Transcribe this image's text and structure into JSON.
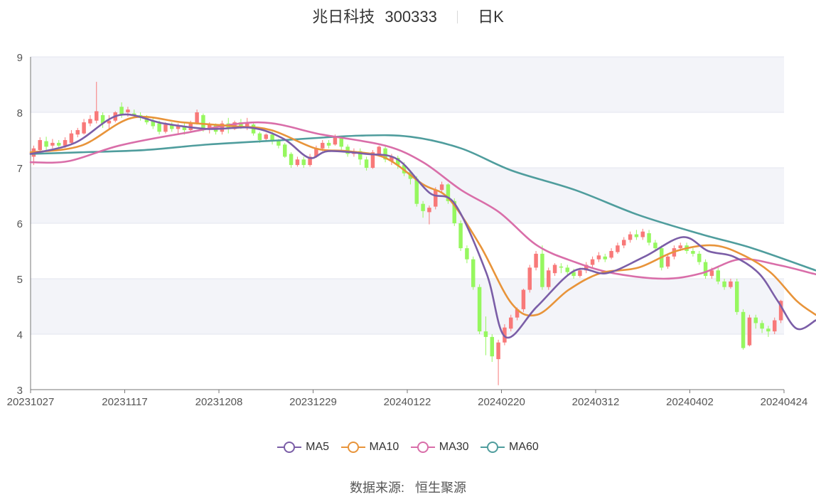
{
  "header": {
    "name": "兆日科技",
    "code": "300333",
    "period": "日K"
  },
  "source": {
    "label": "数据来源:",
    "value": "恒生聚源"
  },
  "colors": {
    "up": "#f87979",
    "down": "#96f75f",
    "ma5": "#7b5ea7",
    "ma10": "#e8943a",
    "ma30": "#d96ea9",
    "ma60": "#4f9d9d"
  },
  "chart_data": {
    "type": "candlestick",
    "ylim": [
      3,
      9
    ],
    "yticks": [
      "3",
      "4",
      "5",
      "6",
      "7",
      "8",
      "9"
    ],
    "xticks": [
      "20231027",
      "20231117",
      "20231208",
      "20231229",
      "20240122",
      "20240220",
      "20240312",
      "20240402",
      "20240424"
    ],
    "legend": [
      "MA5",
      "MA10",
      "MA30",
      "MA60"
    ],
    "candles": [
      [
        7.2,
        7.35,
        7.05,
        7.4
      ],
      [
        7.32,
        7.5,
        7.28,
        7.55
      ],
      [
        7.48,
        7.38,
        7.3,
        7.56
      ],
      [
        7.4,
        7.45,
        7.35,
        7.52
      ],
      [
        7.45,
        7.4,
        7.35,
        7.5
      ],
      [
        7.4,
        7.5,
        7.36,
        7.55
      ],
      [
        7.45,
        7.62,
        7.42,
        7.68
      ],
      [
        7.6,
        7.68,
        7.55,
        7.72
      ],
      [
        7.62,
        7.82,
        7.6,
        7.88
      ],
      [
        7.8,
        7.88,
        7.75,
        7.95
      ],
      [
        7.85,
        8.02,
        7.8,
        8.55
      ],
      [
        7.95,
        7.8,
        7.72,
        8.0
      ],
      [
        7.8,
        7.85,
        7.7,
        7.95
      ],
      [
        7.85,
        8.0,
        7.82,
        8.02
      ],
      [
        8.1,
        7.95,
        7.9,
        8.18
      ],
      [
        8.0,
        8.05,
        7.92,
        8.1
      ],
      [
        7.98,
        7.95,
        7.9,
        8.05
      ],
      [
        7.95,
        7.9,
        7.85,
        8.0
      ],
      [
        7.9,
        7.82,
        7.78,
        7.95
      ],
      [
        7.85,
        7.75,
        7.7,
        7.9
      ],
      [
        7.8,
        7.65,
        7.6,
        7.85
      ],
      [
        7.65,
        7.78,
        7.62,
        7.82
      ],
      [
        7.78,
        7.7,
        7.65,
        7.82
      ],
      [
        7.7,
        7.75,
        7.62,
        7.8
      ],
      [
        7.75,
        7.68,
        7.6,
        7.8
      ],
      [
        7.68,
        7.8,
        7.65,
        7.85
      ],
      [
        7.8,
        8.0,
        7.78,
        8.05
      ],
      [
        7.95,
        7.7,
        7.65,
        7.98
      ],
      [
        7.72,
        7.78,
        7.62,
        7.82
      ],
      [
        7.78,
        7.65,
        7.6,
        7.8
      ],
      [
        7.65,
        7.8,
        7.6,
        7.85
      ],
      [
        7.8,
        7.7,
        7.62,
        7.9
      ],
      [
        7.7,
        7.82,
        7.68,
        7.85
      ],
      [
        7.82,
        7.75,
        7.7,
        7.88
      ],
      [
        7.75,
        7.8,
        7.68,
        7.9
      ],
      [
        7.78,
        7.62,
        7.58,
        7.8
      ],
      [
        7.62,
        7.5,
        7.45,
        7.65
      ],
      [
        7.52,
        7.6,
        7.48,
        7.62
      ],
      [
        7.6,
        7.48,
        7.42,
        7.65
      ],
      [
        7.48,
        7.4,
        7.35,
        7.52
      ],
      [
        7.42,
        7.2,
        7.18,
        7.45
      ],
      [
        7.25,
        7.05,
        7.0,
        7.28
      ],
      [
        7.05,
        7.15,
        7.02,
        7.2
      ],
      [
        7.15,
        7.05,
        7.0,
        7.2
      ],
      [
        7.05,
        7.2,
        7.02,
        7.25
      ],
      [
        7.2,
        7.35,
        7.18,
        7.4
      ],
      [
        7.35,
        7.45,
        7.3,
        7.5
      ],
      [
        7.45,
        7.4,
        7.35,
        7.5
      ],
      [
        7.42,
        7.55,
        7.4,
        7.6
      ],
      [
        7.55,
        7.38,
        7.3,
        7.58
      ],
      [
        7.38,
        7.25,
        7.2,
        7.42
      ],
      [
        7.25,
        7.3,
        7.2,
        7.35
      ],
      [
        7.3,
        7.15,
        7.05,
        7.35
      ],
      [
        7.15,
        7.0,
        6.95,
        7.2
      ],
      [
        7.0,
        7.28,
        6.98,
        7.32
      ],
      [
        7.25,
        7.38,
        7.2,
        7.4
      ],
      [
        7.35,
        7.15,
        7.1,
        7.4
      ],
      [
        7.12,
        7.2,
        7.05,
        7.25
      ],
      [
        7.18,
        7.05,
        6.98,
        7.22
      ],
      [
        7.05,
        6.9,
        6.85,
        7.1
      ],
      [
        6.92,
        6.8,
        6.7,
        6.95
      ],
      [
        6.8,
        6.35,
        6.3,
        6.85
      ],
      [
        6.35,
        6.22,
        6.1,
        6.4
      ],
      [
        6.2,
        6.28,
        5.98,
        6.32
      ],
      [
        6.3,
        6.6,
        6.25,
        6.65
      ],
      [
        6.6,
        6.7,
        6.55,
        6.75
      ],
      [
        6.7,
        6.4,
        6.35,
        6.72
      ],
      [
        6.4,
        6.0,
        5.95,
        6.45
      ],
      [
        6.0,
        5.55,
        5.5,
        6.05
      ],
      [
        5.55,
        5.35,
        5.28,
        5.6
      ],
      [
        5.35,
        4.85,
        4.8,
        5.4
      ],
      [
        4.85,
        4.05,
        4.0,
        4.9
      ],
      [
        4.05,
        3.95,
        3.62,
        4.32
      ],
      [
        3.95,
        3.6,
        3.5,
        4.0
      ],
      [
        3.55,
        3.85,
        3.08,
        3.9
      ],
      [
        3.85,
        4.12,
        3.8,
        4.18
      ],
      [
        4.1,
        4.3,
        4.05,
        4.35
      ],
      [
        4.3,
        4.45,
        4.25,
        4.48
      ],
      [
        4.45,
        4.8,
        4.4,
        4.82
      ],
      [
        4.8,
        5.2,
        4.75,
        5.25
      ],
      [
        5.2,
        5.45,
        5.15,
        5.5
      ],
      [
        5.45,
        4.85,
        4.8,
        5.6
      ],
      [
        4.85,
        5.15,
        4.8,
        5.2
      ],
      [
        5.1,
        5.25,
        5.05,
        5.28
      ],
      [
        5.22,
        5.2,
        5.1,
        5.28
      ],
      [
        5.2,
        5.12,
        5.05,
        5.25
      ],
      [
        5.12,
        5.05,
        5.0,
        5.18
      ],
      [
        5.05,
        5.15,
        5.02,
        5.2
      ],
      [
        5.15,
        5.25,
        5.1,
        5.3
      ],
      [
        5.25,
        5.35,
        5.2,
        5.4
      ],
      [
        5.35,
        5.42,
        5.3,
        5.48
      ],
      [
        5.4,
        5.35,
        5.3,
        5.45
      ],
      [
        5.38,
        5.5,
        5.35,
        5.55
      ],
      [
        5.48,
        5.6,
        5.45,
        5.65
      ],
      [
        5.6,
        5.7,
        5.55,
        5.75
      ],
      [
        5.7,
        5.8,
        5.65,
        5.85
      ],
      [
        5.8,
        5.75,
        5.7,
        5.88
      ],
      [
        5.75,
        5.85,
        5.7,
        5.9
      ],
      [
        5.82,
        5.65,
        5.6,
        5.88
      ],
      [
        5.65,
        5.55,
        5.5,
        5.7
      ],
      [
        5.55,
        5.2,
        5.15,
        5.6
      ],
      [
        5.22,
        5.4,
        5.18,
        5.45
      ],
      [
        5.4,
        5.55,
        5.35,
        5.6
      ],
      [
        5.55,
        5.6,
        5.5,
        5.65
      ],
      [
        5.6,
        5.5,
        5.45,
        5.65
      ],
      [
        5.5,
        5.45,
        5.4,
        5.55
      ],
      [
        5.45,
        5.3,
        5.25,
        5.5
      ],
      [
        5.3,
        5.05,
        5.0,
        5.35
      ],
      [
        5.05,
        5.15,
        5.0,
        5.2
      ],
      [
        5.15,
        4.95,
        4.9,
        5.2
      ],
      [
        4.95,
        4.85,
        4.8,
        5.0
      ],
      [
        4.85,
        4.95,
        4.82,
        5.0
      ],
      [
        4.95,
        4.4,
        4.35,
        5.0
      ],
      [
        4.4,
        3.75,
        3.72,
        4.45
      ],
      [
        3.8,
        4.3,
        3.78,
        4.35
      ],
      [
        4.3,
        4.2,
        4.1,
        4.35
      ],
      [
        4.2,
        4.1,
        4.02,
        4.25
      ],
      [
        4.1,
        4.05,
        3.95,
        4.15
      ],
      [
        4.05,
        4.25,
        4.0,
        4.3
      ],
      [
        4.25,
        4.6,
        4.2,
        4.62
      ]
    ],
    "ma5": [
      [
        0,
        7.25
      ],
      [
        7,
        7.45
      ],
      [
        14,
        7.95
      ],
      [
        21,
        7.8
      ],
      [
        28,
        7.7
      ],
      [
        35,
        7.72
      ],
      [
        40,
        7.52
      ],
      [
        44,
        7.18
      ],
      [
        47,
        7.3
      ],
      [
        53,
        7.25
      ],
      [
        58,
        7.15
      ],
      [
        63,
        6.55
      ],
      [
        67,
        6.35
      ],
      [
        72,
        5.1
      ],
      [
        75,
        3.95
      ],
      [
        80,
        4.5
      ],
      [
        86,
        5.15
      ],
      [
        91,
        5.1
      ],
      [
        97,
        5.4
      ],
      [
        103,
        5.75
      ],
      [
        107,
        5.5
      ],
      [
        111,
        5.4
      ],
      [
        115,
        5.1
      ],
      [
        118,
        4.6
      ],
      [
        121,
        4.1
      ],
      [
        124,
        4.25
      ]
    ],
    "ma10": [
      [
        0,
        7.28
      ],
      [
        8,
        7.4
      ],
      [
        16,
        7.9
      ],
      [
        24,
        7.82
      ],
      [
        32,
        7.75
      ],
      [
        38,
        7.68
      ],
      [
        45,
        7.35
      ],
      [
        50,
        7.3
      ],
      [
        56,
        7.18
      ],
      [
        62,
        6.7
      ],
      [
        66,
        6.45
      ],
      [
        71,
        5.6
      ],
      [
        76,
        4.55
      ],
      [
        80,
        4.35
      ],
      [
        85,
        4.8
      ],
      [
        90,
        5.1
      ],
      [
        96,
        5.2
      ],
      [
        102,
        5.5
      ],
      [
        108,
        5.6
      ],
      [
        113,
        5.4
      ],
      [
        117,
        5.1
      ],
      [
        121,
        4.6
      ],
      [
        124,
        4.35
      ]
    ],
    "ma30": [
      [
        0,
        7.1
      ],
      [
        6,
        7.12
      ],
      [
        14,
        7.4
      ],
      [
        24,
        7.62
      ],
      [
        36,
        7.82
      ],
      [
        46,
        7.6
      ],
      [
        56,
        7.4
      ],
      [
        62,
        7.1
      ],
      [
        68,
        6.6
      ],
      [
        74,
        6.2
      ],
      [
        80,
        5.6
      ],
      [
        86,
        5.3
      ],
      [
        92,
        5.1
      ],
      [
        100,
        5.0
      ],
      [
        106,
        5.1
      ],
      [
        112,
        5.35
      ],
      [
        118,
        5.25
      ],
      [
        124,
        5.08
      ]
    ],
    "ma60": [
      [
        0,
        7.25
      ],
      [
        8,
        7.28
      ],
      [
        18,
        7.32
      ],
      [
        28,
        7.42
      ],
      [
        40,
        7.5
      ],
      [
        52,
        7.58
      ],
      [
        60,
        7.56
      ],
      [
        68,
        7.35
      ],
      [
        76,
        6.95
      ],
      [
        86,
        6.6
      ],
      [
        96,
        6.15
      ],
      [
        106,
        5.8
      ],
      [
        114,
        5.55
      ],
      [
        124,
        5.15
      ]
    ]
  }
}
